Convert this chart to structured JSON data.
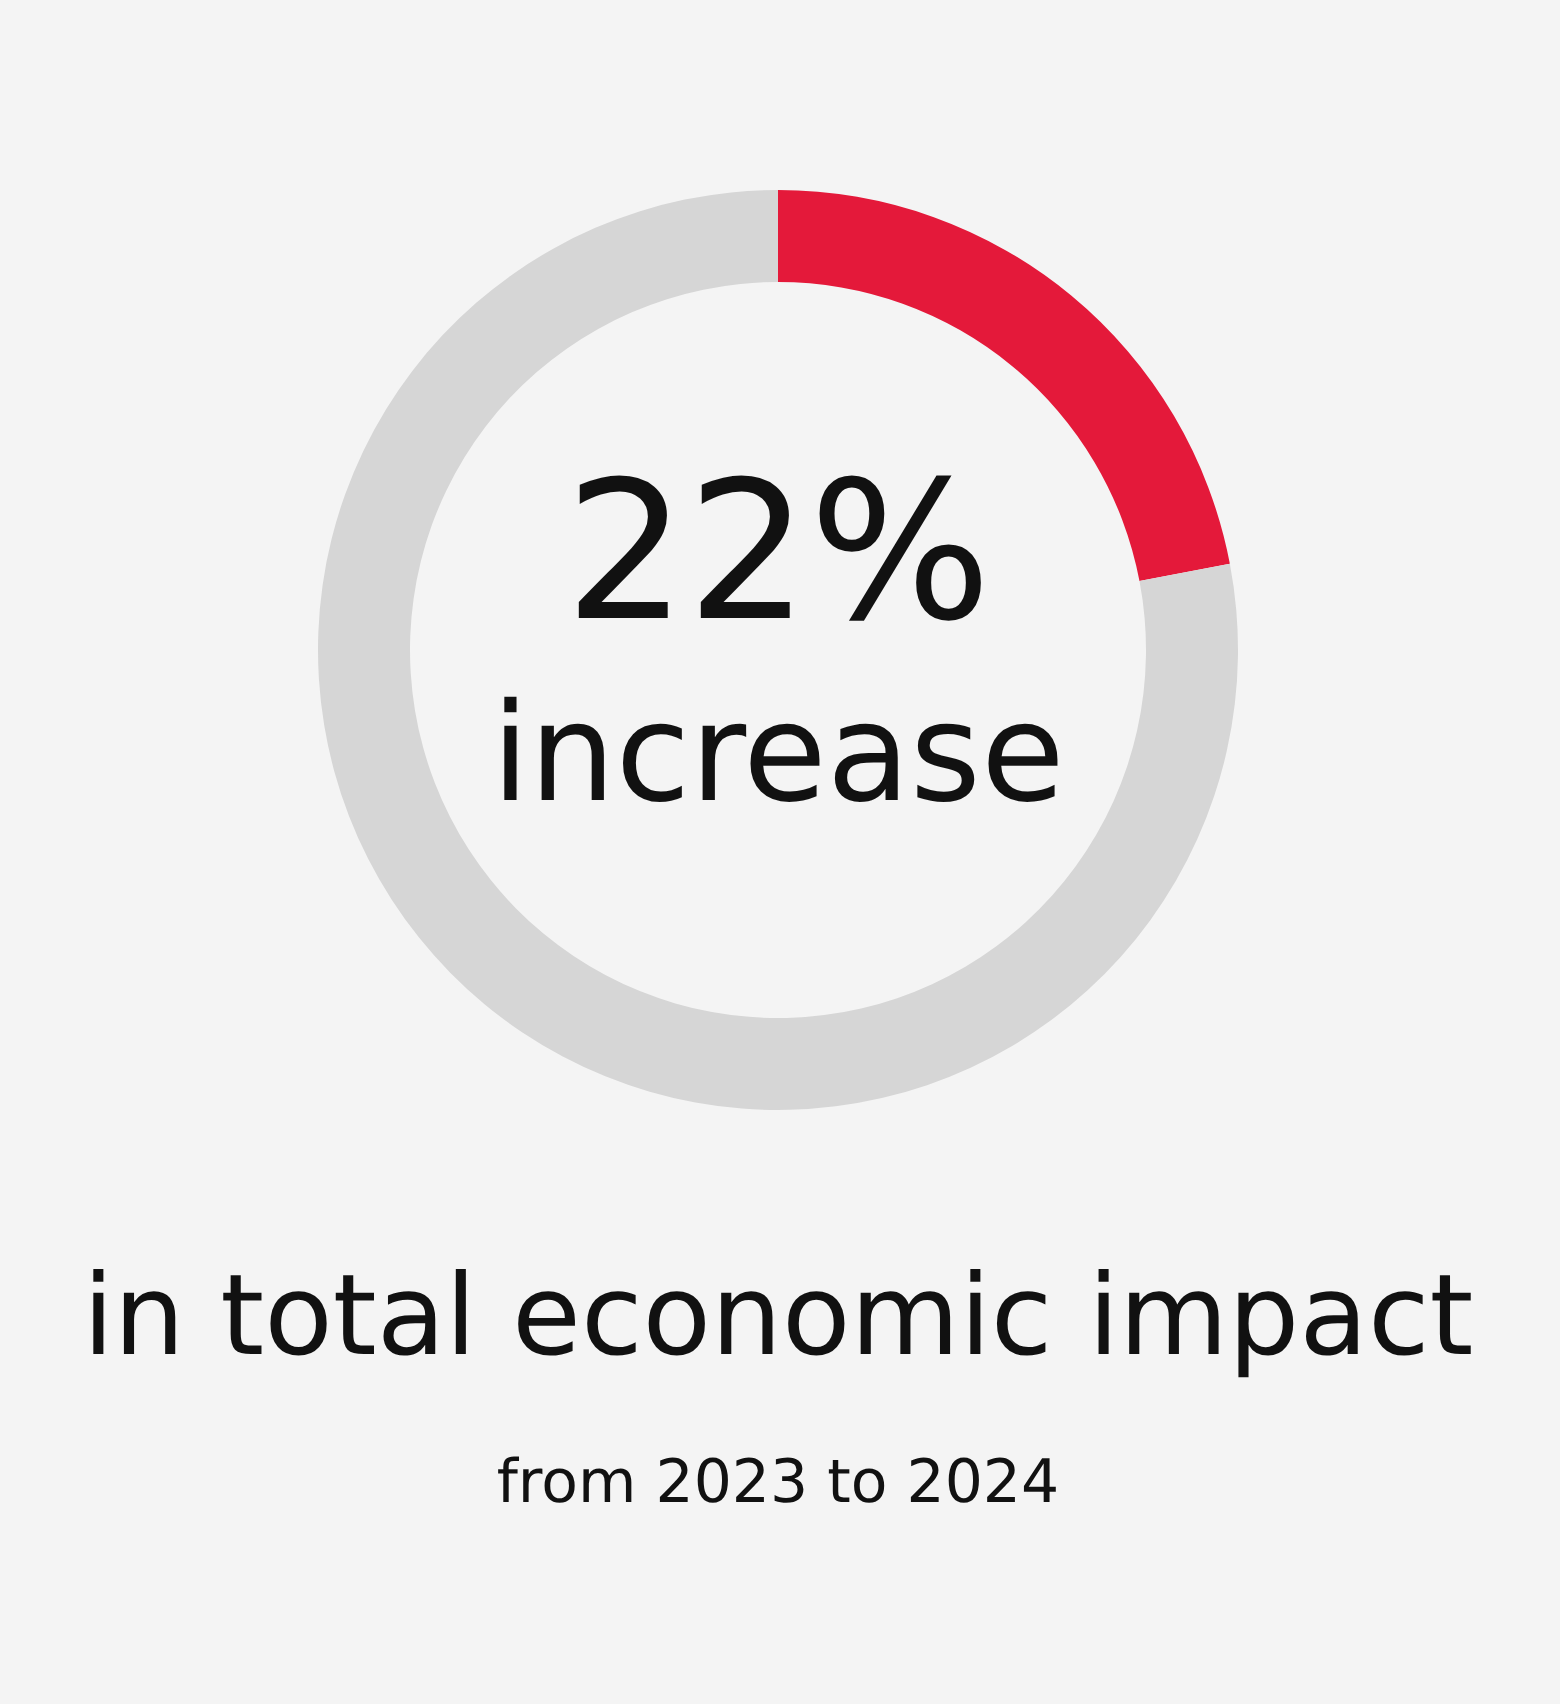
{
  "chart_data": {
    "type": "donut",
    "categories": [
      null,
      null
    ],
    "values": [
      22,
      78
    ],
    "colors": [
      "#e4193a",
      "#d6d6d6"
    ],
    "value_labels": [
      "22%",
      null
    ],
    "annotations": [
      "increase",
      "in total economic impact",
      "from 2023 to 2024"
    ]
  }
}
